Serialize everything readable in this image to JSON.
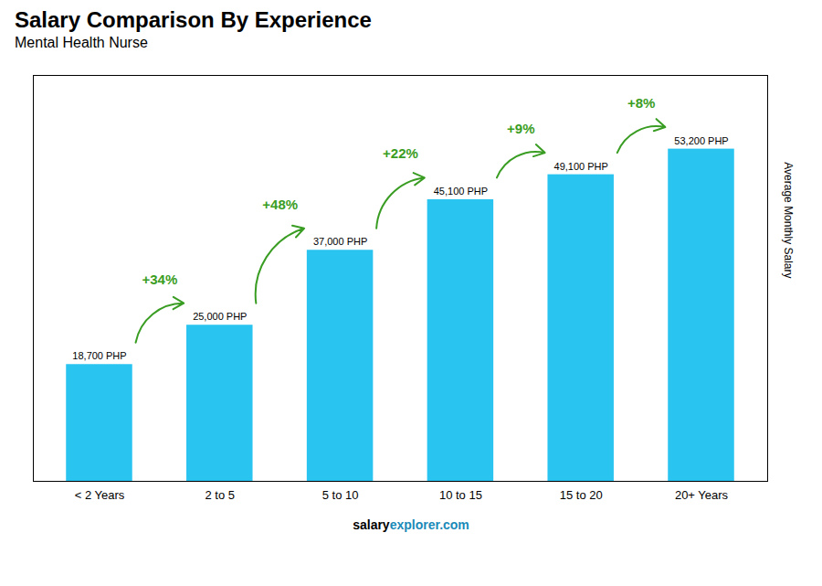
{
  "chart_data": {
    "type": "bar",
    "title": "Salary Comparison By Experience",
    "subtitle": "Mental Health Nurse",
    "categories": [
      "< 2 Years",
      "2 to 5",
      "5 to 10",
      "10 to 15",
      "15 to 20",
      "20+ Years"
    ],
    "values": [
      18700,
      25000,
      37000,
      45100,
      49100,
      53200
    ],
    "value_labels": [
      "18,700 PHP",
      "25,000 PHP",
      "37,000 PHP",
      "45,100 PHP",
      "49,100 PHP",
      "53,200 PHP"
    ],
    "data_labels": true,
    "color": "#29c4f0",
    "ylim": [
      0,
      65000
    ],
    "yticks": [],
    "tick_labels": "x",
    "grid": false,
    "ylabel": "Average Monthly Salary",
    "annotations": [
      {
        "text": "+34%",
        "from": "< 2 Years",
        "to": "2 to 5"
      },
      {
        "text": "+48%",
        "from": "2 to 5",
        "to": "5 to 10"
      },
      {
        "text": "+22%",
        "from": "5 to 10",
        "to": "10 to 15"
      },
      {
        "text": "+9%",
        "from": "10 to 15",
        "to": "15 to 20"
      },
      {
        "text": "+8%",
        "from": "15 to 20",
        "to": "20+ Years"
      }
    ],
    "footer": [
      "salary",
      "explorer.com"
    ]
  }
}
